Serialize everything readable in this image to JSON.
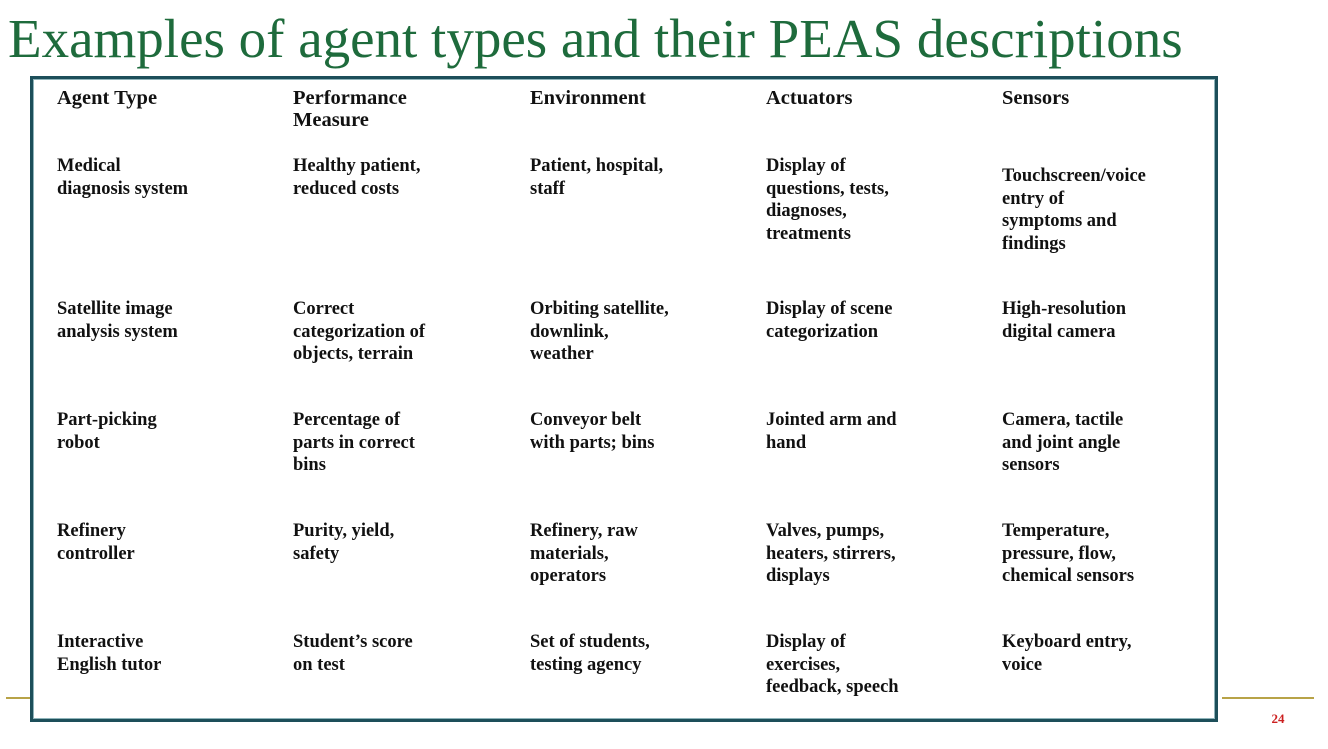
{
  "slide": {
    "title": "Examples of agent types and their PEAS descriptions",
    "page_number": "24"
  },
  "table": {
    "headers": [
      "Agent Type",
      "Performance\nMeasure",
      "Environment",
      "Actuators",
      "Sensors"
    ],
    "rows": [
      [
        "Medical\ndiagnosis system",
        "Healthy patient,\nreduced costs",
        "Patient, hospital,\nstaff",
        "Display of\nquestions, tests,\ndiagnoses,\ntreatments",
        "Touchscreen/voice\nentry of\nsymptoms and\nfindings"
      ],
      [
        "Satellite image\nanalysis system",
        "Correct\ncategorization of\nobjects, terrain",
        "Orbiting satellite,\ndownlink,\nweather",
        "Display of scene\ncategorization",
        "High-resolution\ndigital camera"
      ],
      [
        "Part-picking\nrobot",
        "Percentage of\nparts in correct\nbins",
        "Conveyor belt\nwith parts; bins",
        "Jointed arm and\nhand",
        "Camera, tactile\nand joint angle\nsensors"
      ],
      [
        "Refinery\ncontroller",
        "Purity, yield,\nsafety",
        "Refinery, raw\nmaterials,\noperators",
        "Valves, pumps,\nheaters, stirrers,\ndisplays",
        "Temperature,\npressure, flow,\nchemical sensors"
      ],
      [
        "Interactive\nEnglish tutor",
        "Student’s score\non test",
        "Set of students,\ntesting agency",
        "Display of\nexercises,\nfeedback, speech",
        "Keyboard entry,\nvoice"
      ]
    ]
  }
}
